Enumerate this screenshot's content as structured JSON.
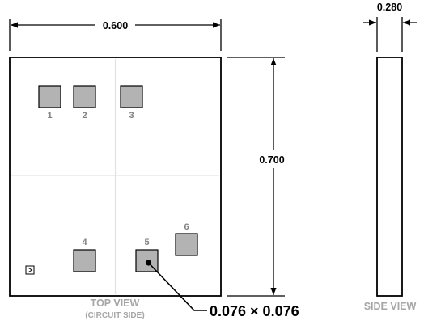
{
  "dimensions": {
    "width": "0.600",
    "height": "0.700",
    "thickness": "0.280",
    "pad_size": "0.076 × 0.076"
  },
  "pads": [
    {
      "label": "1"
    },
    {
      "label": "2"
    },
    {
      "label": "3"
    },
    {
      "label": "4"
    },
    {
      "label": "5"
    },
    {
      "label": "6"
    }
  ],
  "captions": {
    "top_view": "TOP VIEW",
    "top_view_sub": "(CIRCUIT SIDE)",
    "side_view": "SIDE VIEW"
  },
  "colors": {
    "pad_fill": "#b3b3b3",
    "guide_line": "#e6e6e6",
    "caption": "#a6a6a6"
  },
  "icons": {
    "orientation_marker": "triangle-in-square-icon"
  }
}
